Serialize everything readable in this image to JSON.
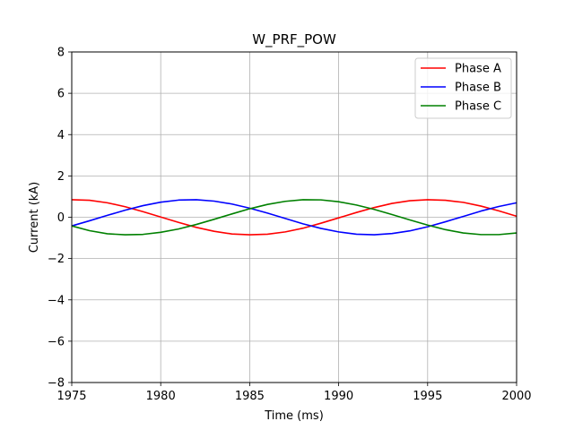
{
  "chart_data": {
    "type": "line",
    "title": "W_PRF_POW",
    "xlabel": "Time (ms)",
    "ylabel": "Current (kA)",
    "xlim": [
      1975,
      2000
    ],
    "ylim": [
      -8,
      8
    ],
    "xticks": [
      1975,
      1980,
      1985,
      1990,
      1995,
      2000
    ],
    "yticks": [
      -8,
      -6,
      -4,
      -2,
      0,
      2,
      4,
      6,
      8
    ],
    "grid": true,
    "legend_position": "top-right",
    "x": [
      1975,
      1976,
      1977,
      1978,
      1979,
      1980,
      1981,
      1982,
      1983,
      1984,
      1985,
      1986,
      1987,
      1988,
      1989,
      1990,
      1991,
      1992,
      1993,
      1994,
      1995,
      1996,
      1997,
      1998,
      1999,
      2000
    ],
    "series": [
      {
        "name": "Phase A",
        "color": "#ff0000",
        "values": [
          0.85,
          0.82,
          0.7,
          0.51,
          0.27,
          0.01,
          -0.25,
          -0.49,
          -0.68,
          -0.81,
          -0.85,
          -0.82,
          -0.71,
          -0.53,
          -0.29,
          -0.03,
          0.23,
          0.47,
          0.67,
          0.8,
          0.85,
          0.82,
          0.72,
          0.54,
          0.31,
          0.05
        ]
      },
      {
        "name": "Phase B",
        "color": "#0000ff",
        "values": [
          -0.42,
          -0.17,
          0.09,
          0.34,
          0.56,
          0.73,
          0.83,
          0.85,
          0.78,
          0.64,
          0.44,
          0.2,
          -0.06,
          -0.32,
          -0.54,
          -0.71,
          -0.82,
          -0.85,
          -0.79,
          -0.66,
          -0.46,
          -0.22,
          0.04,
          0.3,
          0.52,
          0.7
        ]
      },
      {
        "name": "Phase C",
        "color": "#008000",
        "values": [
          -0.42,
          -0.65,
          -0.8,
          -0.85,
          -0.83,
          -0.73,
          -0.57,
          -0.35,
          -0.1,
          0.16,
          0.41,
          0.62,
          0.77,
          0.85,
          0.84,
          0.75,
          0.59,
          0.38,
          0.13,
          -0.13,
          -0.38,
          -0.6,
          -0.76,
          -0.84,
          -0.84,
          -0.76
        ]
      }
    ]
  }
}
